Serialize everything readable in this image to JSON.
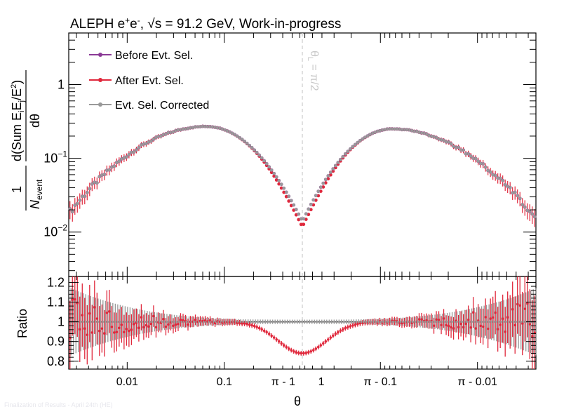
{
  "chart_data": {
    "type": "scatter",
    "title_prefix": "ALEPH e",
    "title_plus": "+",
    "title_e": "e",
    "title_minus": "-",
    "title_suffix": ", √s = 91.2 GeV, Work-in-progress",
    "xlabel": "θ",
    "x_scale": "symmetric-log around π/2",
    "x_range": [
      "0.0025",
      "π - 0.0025"
    ],
    "x_ticks": [
      "0.01",
      "0.1",
      "1",
      "π - 1",
      "π - 0.1",
      "π - 0.01"
    ],
    "top_panel": {
      "ylabel_parts": {
        "frac_num": "1",
        "n": "N",
        "n_sub": "event",
        "dsum": "d(Sum E",
        "sub_i": "i",
        "e": "E",
        "sub_j": "j",
        "over": "/E",
        "sup2": "2",
        "close": ")",
        "dtheta": "dθ"
      },
      "y_scale": "log",
      "ylim": [
        0.0025,
        5.0
      ],
      "y_tick_labels": [
        {
          "base": "10",
          "exp": "−2",
          "value": 0.01
        },
        {
          "base": "10",
          "exp": "−1",
          "value": 0.1
        },
        {
          "base": "1",
          "exp": "",
          "value": 1
        }
      ],
      "divider_label": "θ",
      "divider_label_sub": "L",
      "divider_label_rest": " = π/2",
      "series": [
        {
          "name": "Before Evt. Sel.",
          "color": "#8b3a96"
        },
        {
          "name": "After Evt. Sel.",
          "color": "#e0283c"
        },
        {
          "name": "Evt. Sel. Corrected",
          "color": "#999999"
        }
      ],
      "curve_model": {
        "description": "two lobes in log10(theta) on each side of pi/2",
        "left_peak": {
          "log10_x": -1.18,
          "y": 0.27
        },
        "right_peak": {
          "log10_x": -1.12,
          "y": 0.25
        },
        "edge_value_left": 0.018,
        "edge_value_right": 0.015,
        "center_value_after": 0.012,
        "center_value_corrected": 0.014
      }
    },
    "bottom_panel": {
      "ylabel": "Ratio",
      "ylim": [
        0.76,
        1.23
      ],
      "y_ticks": [
        "0.8",
        "0.9",
        "1",
        "1.1",
        "1.2"
      ],
      "reference_line": 1.0,
      "ratio_min_at_center": 0.84
    }
  },
  "footer_text": "Finalization of Results - April 24th (HE)"
}
